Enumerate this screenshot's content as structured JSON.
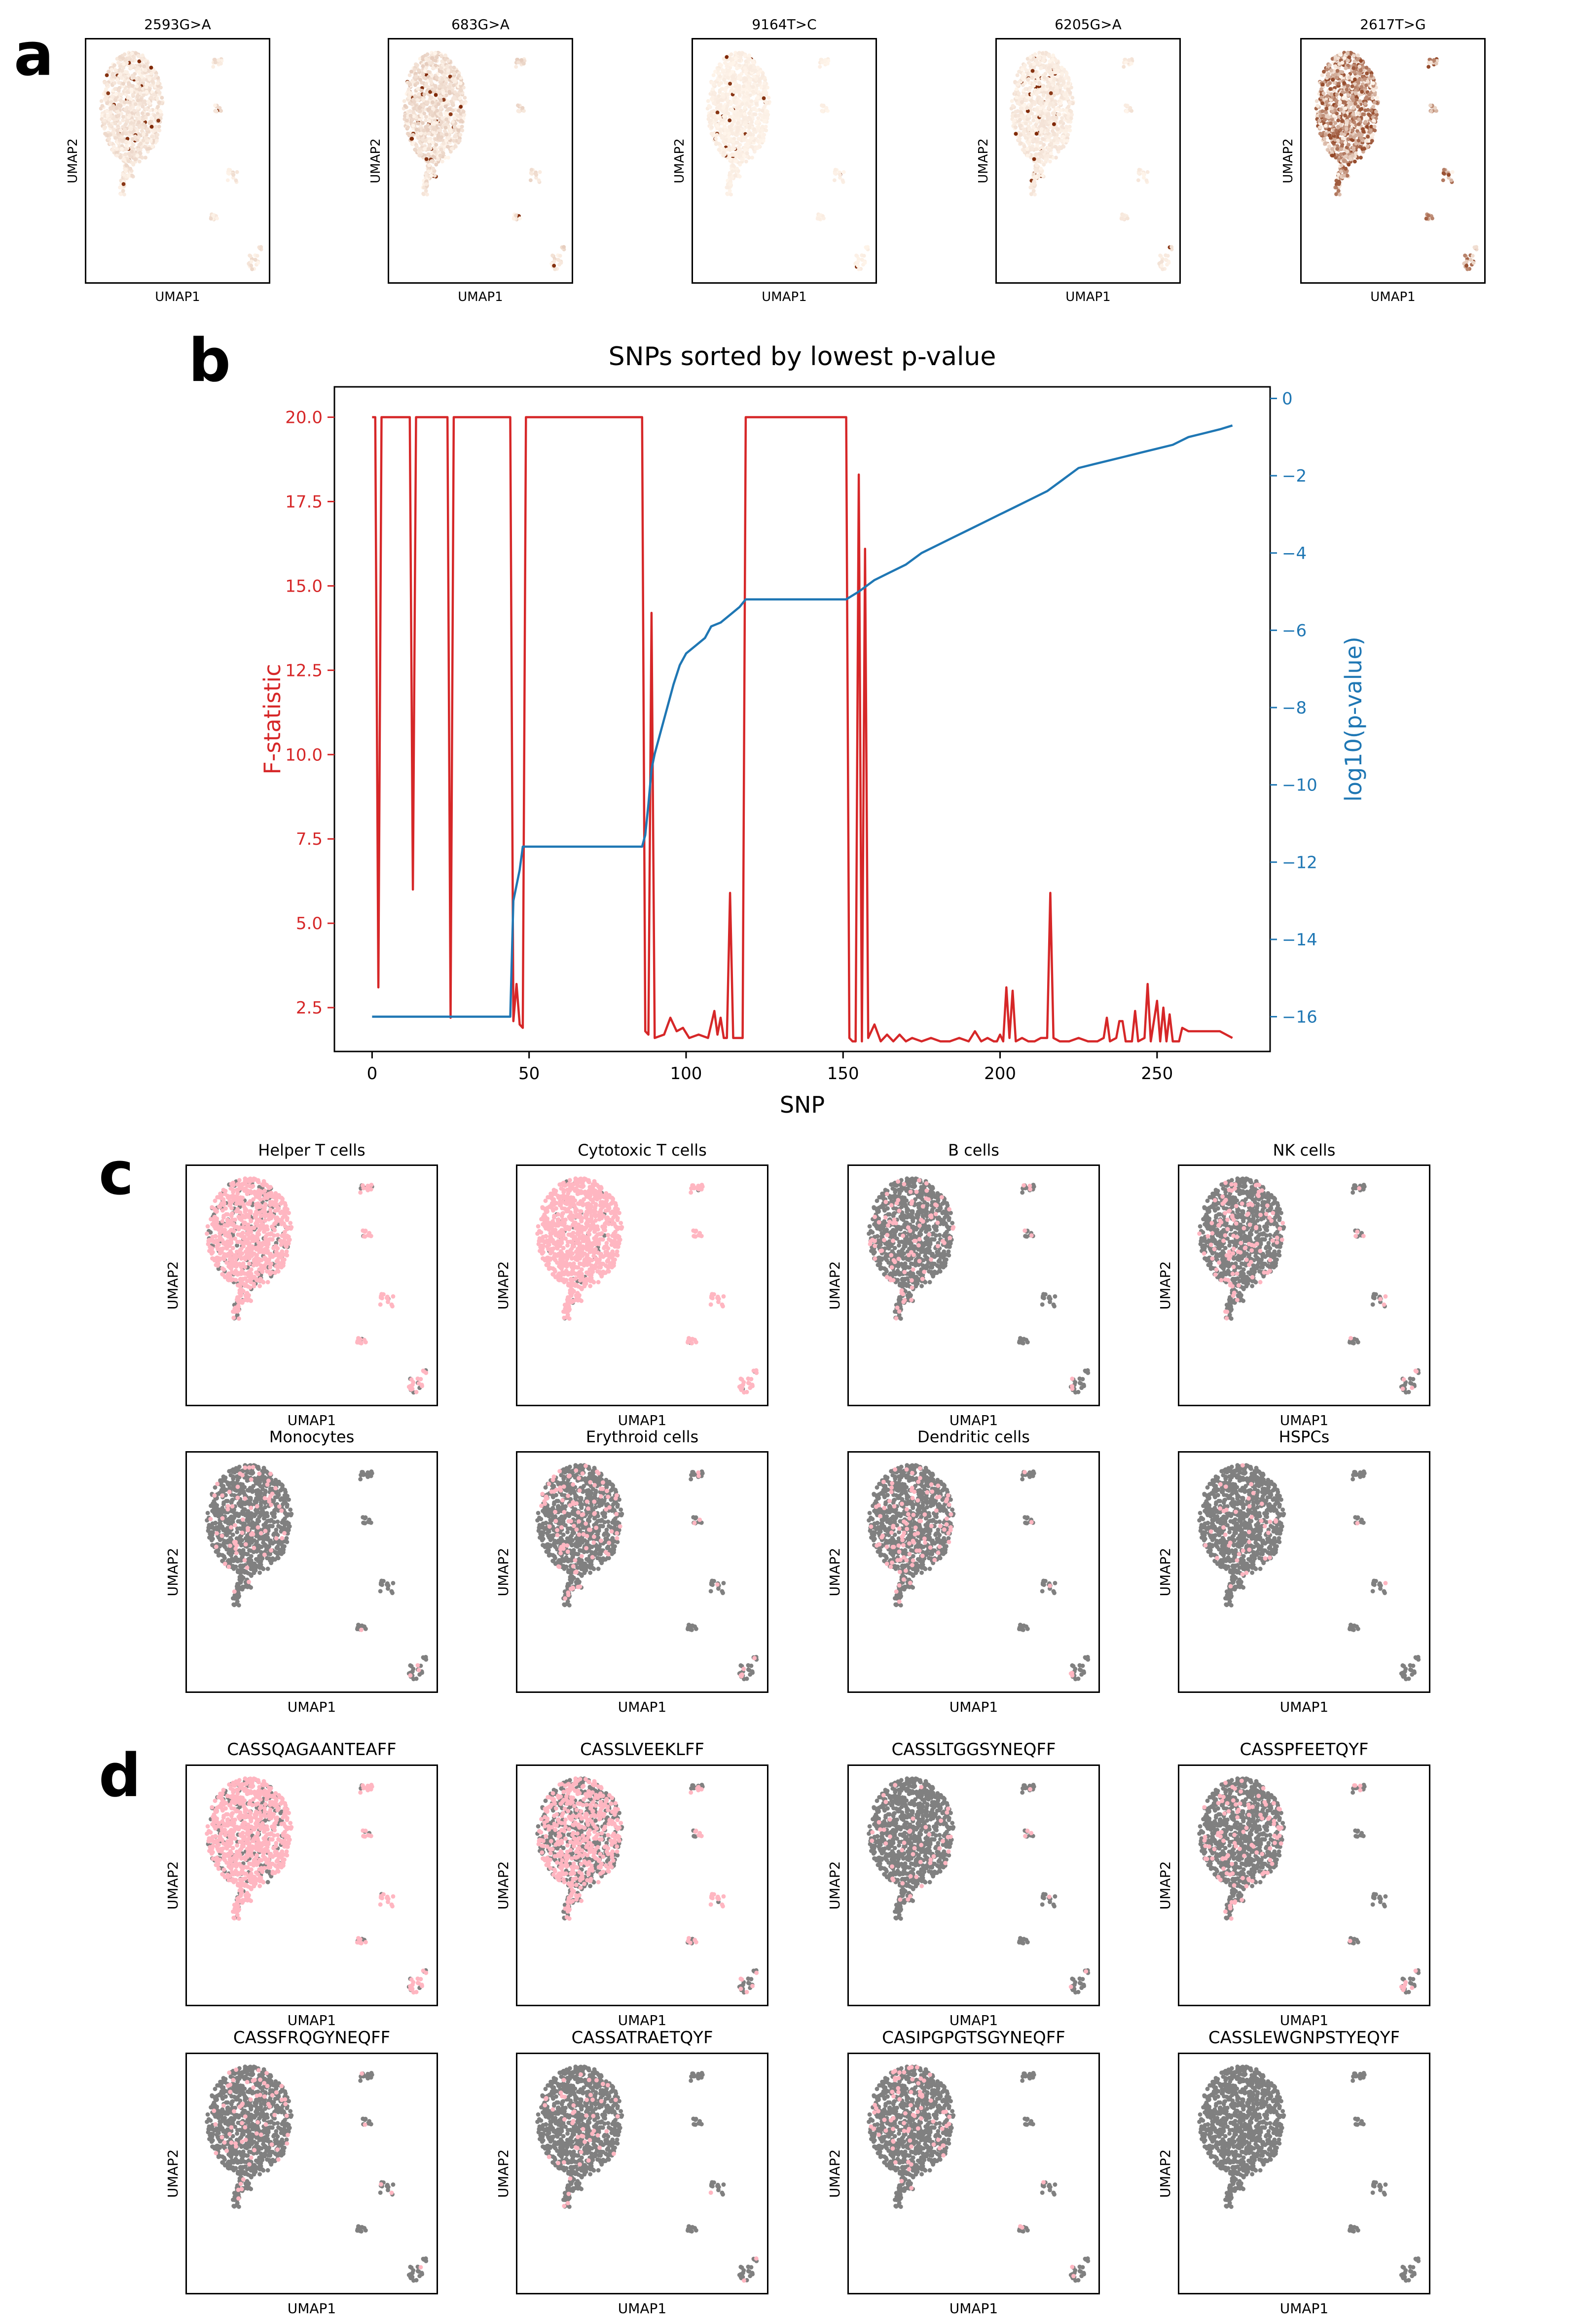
{
  "panels": {
    "a": {
      "letter": "a"
    },
    "b": {
      "letter": "b"
    },
    "c": {
      "letter": "c"
    },
    "d": {
      "letter": "d"
    }
  },
  "colors": {
    "f_line": "#d62728",
    "p_line": "#1f77b4",
    "highlight": "#ffb6c1",
    "background_cells": "#808080",
    "heat_low": "#fff5eb",
    "heat_high": "#7f2704"
  },
  "chart_data": [
    {
      "type": "scatter",
      "panel": "a",
      "xlabel": "UMAP1",
      "ylabel": "UMAP2",
      "colormap": "Oranges",
      "subplots": [
        {
          "title": "2593G>A",
          "intensity": 0.15,
          "hotspots": "top-left edge of main cluster"
        },
        {
          "title": "683G>A",
          "intensity": 0.2,
          "hotspots": "scattered dots in main cluster, lower-left island"
        },
        {
          "title": "9164T>C",
          "intensity": 0.05,
          "hotspots": "small right islands"
        },
        {
          "title": "6205G>A",
          "intensity": 0.1,
          "hotspots": "few dots in main cluster, right islands"
        },
        {
          "title": "2617T>G",
          "intensity": 0.85,
          "hotspots": "whole main cluster"
        }
      ]
    },
    {
      "type": "line",
      "panel": "b",
      "title": "SNPs sorted by lowest p-value",
      "xlabel": "SNP",
      "ylabel_left": "F-statistic",
      "ylabel_right": "log10(p-value)",
      "xlim": [
        -12,
        286
      ],
      "ylim_left": [
        1.2,
        20.9
      ],
      "ylim_right": [
        -16.9,
        0.3
      ],
      "xticks": [
        0,
        50,
        100,
        150,
        200,
        250
      ],
      "yticks_left": [
        2.5,
        5.0,
        7.5,
        10.0,
        12.5,
        15.0,
        17.5,
        20.0
      ],
      "yticks_right": [
        -16,
        -14,
        -12,
        -10,
        -8,
        -6,
        -4,
        -2,
        0
      ],
      "xtick_labels": [
        "0",
        "50",
        "100",
        "150",
        "200",
        "250"
      ],
      "ytick_labels_left": [
        "2.5",
        "5.0",
        "7.5",
        "10.0",
        "12.5",
        "15.0",
        "17.5",
        "20.0"
      ],
      "ytick_labels_right": [
        "−16",
        "−14",
        "−12",
        "−10",
        "−8",
        "−6",
        "−4",
        "−2",
        "0"
      ],
      "series": [
        {
          "axis": "left",
          "points": [
            [
              0,
              20
            ],
            [
              1,
              20
            ],
            [
              2,
              3.1
            ],
            [
              3,
              20
            ],
            [
              12,
              20
            ],
            [
              13,
              6
            ],
            [
              14,
              20
            ],
            [
              24,
              20
            ],
            [
              25,
              2.2
            ],
            [
              26,
              20
            ],
            [
              44,
              20
            ],
            [
              45,
              2.1
            ],
            [
              46,
              3.2
            ],
            [
              47,
              2
            ],
            [
              48,
              1.9
            ],
            [
              49,
              20
            ],
            [
              86,
              20
            ],
            [
              87,
              1.8
            ],
            [
              88,
              1.7
            ],
            [
              89,
              14.2
            ],
            [
              90,
              1.6
            ],
            [
              93,
              1.7
            ],
            [
              95,
              2.2
            ],
            [
              97,
              1.8
            ],
            [
              99,
              1.9
            ],
            [
              101,
              1.6
            ],
            [
              104,
              1.7
            ],
            [
              107,
              1.6
            ],
            [
              109,
              2.4
            ],
            [
              110,
              1.7
            ],
            [
              111,
              2.2
            ],
            [
              112,
              1.6
            ],
            [
              113,
              1.6
            ],
            [
              114,
              5.9
            ],
            [
              115,
              1.6
            ],
            [
              117,
              1.6
            ],
            [
              118,
              1.6
            ],
            [
              119,
              20
            ],
            [
              151,
              20
            ],
            [
              152,
              1.6
            ],
            [
              153,
              1.5
            ],
            [
              154,
              1.5
            ],
            [
              155,
              18.3
            ],
            [
              156,
              1.5
            ],
            [
              157,
              16.1
            ],
            [
              158,
              1.6
            ],
            [
              160,
              2
            ],
            [
              162,
              1.5
            ],
            [
              164,
              1.7
            ],
            [
              166,
              1.5
            ],
            [
              168,
              1.7
            ],
            [
              170,
              1.5
            ],
            [
              172,
              1.6
            ],
            [
              175,
              1.5
            ],
            [
              178,
              1.6
            ],
            [
              181,
              1.5
            ],
            [
              184,
              1.5
            ],
            [
              187,
              1.6
            ],
            [
              190,
              1.5
            ],
            [
              192,
              1.8
            ],
            [
              194,
              1.5
            ],
            [
              196,
              1.6
            ],
            [
              198,
              1.5
            ],
            [
              199,
              1.5
            ],
            [
              200,
              1.7
            ],
            [
              201,
              1.5
            ],
            [
              202,
              3.1
            ],
            [
              203,
              1.6
            ],
            [
              204,
              3
            ],
            [
              205,
              1.5
            ],
            [
              207,
              1.6
            ],
            [
              209,
              1.5
            ],
            [
              211,
              1.5
            ],
            [
              213,
              1.6
            ],
            [
              215,
              1.6
            ],
            [
              216,
              5.9
            ],
            [
              217,
              1.6
            ],
            [
              219,
              1.5
            ],
            [
              222,
              1.5
            ],
            [
              225,
              1.6
            ],
            [
              228,
              1.5
            ],
            [
              231,
              1.5
            ],
            [
              233,
              1.6
            ],
            [
              234,
              2.2
            ],
            [
              235,
              1.5
            ],
            [
              237,
              1.6
            ],
            [
              238,
              2.1
            ],
            [
              239,
              2.1
            ],
            [
              240,
              1.5
            ],
            [
              242,
              1.5
            ],
            [
              243,
              2.4
            ],
            [
              244,
              1.5
            ],
            [
              246,
              1.6
            ],
            [
              247,
              3.2
            ],
            [
              248,
              1.5
            ],
            [
              250,
              2.7
            ],
            [
              251,
              1.5
            ],
            [
              252,
              2.5
            ],
            [
              253,
              1.5
            ],
            [
              254,
              2.3
            ],
            [
              255,
              1.5
            ],
            [
              257,
              1.5
            ],
            [
              258,
              1.9
            ],
            [
              260,
              1.8
            ],
            [
              265,
              1.8
            ],
            [
              270,
              1.8
            ],
            [
              272,
              1.7
            ],
            [
              274,
              1.6
            ]
          ]
        },
        {
          "axis": "right",
          "points": [
            [
              0,
              -16
            ],
            [
              44,
              -16
            ],
            [
              45,
              -13
            ],
            [
              46,
              -12.6
            ],
            [
              47,
              -12.2
            ],
            [
              48,
              -11.6
            ],
            [
              86,
              -11.6
            ],
            [
              87,
              -11.3
            ],
            [
              88,
              -10.5
            ],
            [
              89,
              -9.6
            ],
            [
              90,
              -9.2
            ],
            [
              92,
              -8.6
            ],
            [
              94,
              -8
            ],
            [
              96,
              -7.4
            ],
            [
              98,
              -6.9
            ],
            [
              100,
              -6.6
            ],
            [
              103,
              -6.4
            ],
            [
              106,
              -6.2
            ],
            [
              108,
              -5.9
            ],
            [
              111,
              -5.8
            ],
            [
              114,
              -5.6
            ],
            [
              117,
              -5.4
            ],
            [
              119,
              -5.2
            ],
            [
              151,
              -5.2
            ],
            [
              155,
              -5
            ],
            [
              160,
              -4.7
            ],
            [
              165,
              -4.5
            ],
            [
              170,
              -4.3
            ],
            [
              175,
              -4
            ],
            [
              180,
              -3.8
            ],
            [
              185,
              -3.6
            ],
            [
              190,
              -3.4
            ],
            [
              195,
              -3.2
            ],
            [
              200,
              -3
            ],
            [
              205,
              -2.8
            ],
            [
              210,
              -2.6
            ],
            [
              215,
              -2.4
            ],
            [
              220,
              -2.1
            ],
            [
              225,
              -1.8
            ],
            [
              230,
              -1.7
            ],
            [
              235,
              -1.6
            ],
            [
              240,
              -1.5
            ],
            [
              245,
              -1.4
            ],
            [
              250,
              -1.3
            ],
            [
              255,
              -1.2
            ],
            [
              260,
              -1
            ],
            [
              265,
              -0.9
            ],
            [
              270,
              -0.8
            ],
            [
              274,
              -0.7
            ]
          ]
        }
      ]
    },
    {
      "type": "scatter",
      "panel": "c",
      "xlabel": "UMAP1",
      "ylabel": "UMAP2",
      "subplots": [
        {
          "title": "Helper T cells",
          "fraction": 0.85
        },
        {
          "title": "Cytotoxic T cells",
          "fraction": 0.97
        },
        {
          "title": "B cells",
          "fraction": 0.1
        },
        {
          "title": "NK cells",
          "fraction": 0.12
        },
        {
          "title": "Monocytes",
          "fraction": 0.08
        },
        {
          "title": "Erythroid cells",
          "fraction": 0.1
        },
        {
          "title": "Dendritic cells",
          "fraction": 0.12
        },
        {
          "title": "HSPCs",
          "fraction": 0.05
        }
      ]
    },
    {
      "type": "scatter",
      "panel": "d",
      "xlabel": "UMAP1",
      "ylabel": "UMAP2",
      "subplots": [
        {
          "title": "CASSQAGAANTEAFF",
          "fraction": 0.8
        },
        {
          "title": "CASSLVEEKLFF",
          "fraction": 0.5
        },
        {
          "title": "CASSLTGGSYNEQFF",
          "fraction": 0.06
        },
        {
          "title": "CASSPFEETQYF",
          "fraction": 0.12
        },
        {
          "title": "CASSFRQGYNEQFF",
          "fraction": 0.06
        },
        {
          "title": "CASSATRAETQYF",
          "fraction": 0.06
        },
        {
          "title": "CASIPGPGTSGYNEQFF",
          "fraction": 0.08
        },
        {
          "title": "CASSLEWGNPSTYEQYF",
          "fraction": 0.0
        }
      ]
    }
  ]
}
